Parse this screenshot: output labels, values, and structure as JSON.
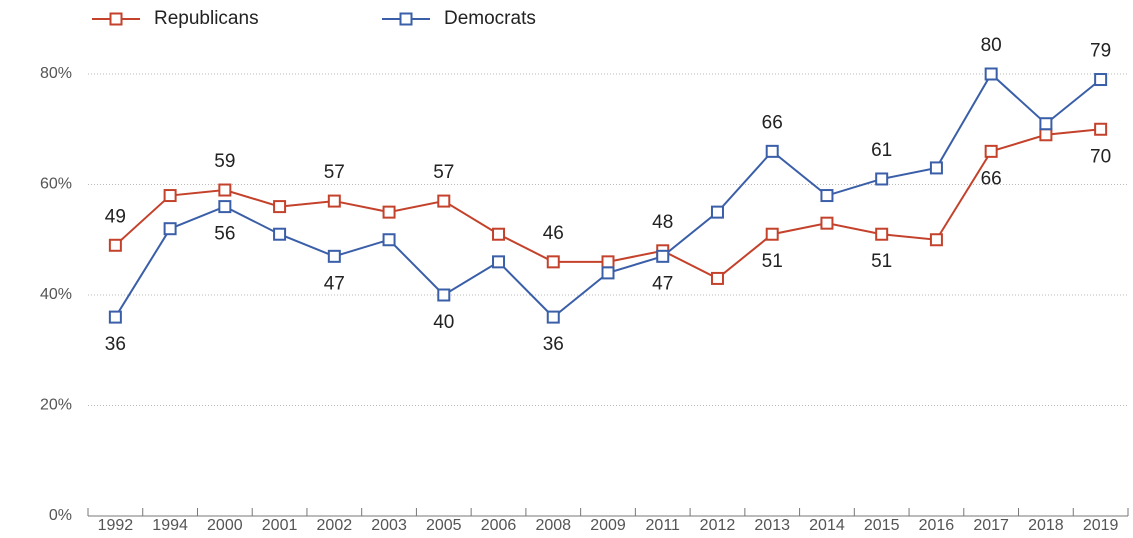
{
  "chart_data": {
    "type": "line",
    "categories": [
      "1992",
      "1994",
      "2000",
      "2001",
      "2002",
      "2003",
      "2005",
      "2006",
      "2008",
      "2009",
      "2011",
      "2012",
      "2013",
      "2014",
      "2015",
      "2016",
      "2017",
      "2018",
      "2019"
    ],
    "series": [
      {
        "name": "Republicans",
        "color": "#c4422b",
        "values": [
          49,
          58,
          59,
          56,
          57,
          55,
          57,
          51,
          46,
          46,
          48,
          43,
          51,
          53,
          51,
          50,
          66,
          69,
          70
        ],
        "labeled": [
          0,
          2,
          4,
          6,
          8,
          10,
          12,
          14,
          16,
          18
        ]
      },
      {
        "name": "Democrats",
        "color": "#3a5fa8",
        "values": [
          36,
          52,
          56,
          51,
          47,
          50,
          40,
          46,
          36,
          44,
          47,
          55,
          66,
          58,
          61,
          63,
          80,
          71,
          79
        ],
        "labeled": [
          0,
          2,
          4,
          6,
          8,
          10,
          12,
          14,
          16,
          18
        ]
      }
    ],
    "ylim": [
      0,
      80
    ],
    "yticks": [
      {
        "value": 0,
        "label": "0%"
      },
      {
        "value": 20,
        "label": "20%"
      },
      {
        "value": 40,
        "label": "40%"
      },
      {
        "value": 60,
        "label": "60%"
      },
      {
        "value": 80,
        "label": "80%"
      }
    ],
    "grid": true,
    "legend": "top-left"
  }
}
